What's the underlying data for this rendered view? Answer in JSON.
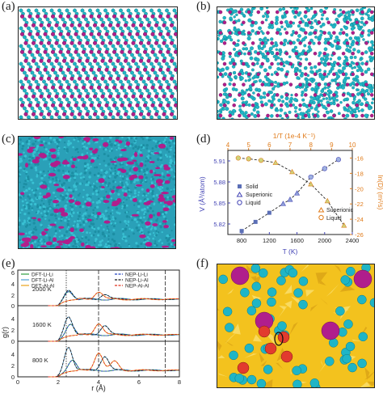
{
  "panel_labels": [
    "(a)",
    "(b)",
    "(c)",
    "(d)",
    "(e)",
    "(f)"
  ],
  "colors": {
    "li": "#1fb5c6",
    "al": "#b01e8c",
    "solid_marker": "#5b6fb6",
    "temp_axis": "#e07b1a",
    "volume_axis": "#4344b5",
    "dashed_fit": "#222222",
    "f_background": "#f3c21e",
    "f_red_atom": "#e23b2e"
  },
  "panel_d": {
    "top_axis_label": "1/T (1e-4 K⁻¹)",
    "top_ticks": [
      "4",
      "5",
      "6",
      "7",
      "8",
      "9",
      "10"
    ],
    "left_axis_label": "V (Å³/atom)",
    "left_ticks": [
      "5.91",
      "5.88",
      "5.85",
      "5.82"
    ],
    "right_axis_label": "ln(D) (m²/s)",
    "right_ticks": [
      "-16",
      "-18",
      "-20",
      "-22",
      "-24",
      "-26"
    ],
    "bottom_axis_label": "T (K)",
    "bottom_ticks": [
      "800",
      "1200",
      "1600",
      "2000",
      "2400"
    ],
    "legend_left": [
      "Solid",
      "Superionic",
      "Liquid"
    ],
    "legend_right": [
      "Superionic",
      "Liquid"
    ]
  },
  "panel_e": {
    "y_axis_label": "g(r)",
    "x_axis_label": "r (Å)",
    "x_ticks": [
      "0",
      "2",
      "4",
      "6",
      "8"
    ],
    "y_ticks": [
      "6",
      "4",
      "2",
      "0"
    ],
    "legend": [
      "DFT-Li-Li",
      "DFT-Li-Al",
      "DFT-Al-Al",
      "NEP-Li-Li",
      "NEP-Li-Al",
      "NEP-Al-Al"
    ],
    "legend_colors": [
      "#2e9e3e",
      "#4d9fd6",
      "#e8a21a",
      "#2040c0",
      "#1a1a1a",
      "#e0321e"
    ],
    "temperatures": [
      "2000 K",
      "1600 K",
      "800 K"
    ]
  },
  "chart_data": [
    {
      "type": "scatter",
      "panel": "d",
      "xlabel": "T (K)",
      "ylabel": "V (Å³/atom)",
      "xlim": [
        600,
        2400
      ],
      "ylim": [
        5.805,
        5.925
      ],
      "series": [
        {
          "name": "Solid",
          "x": [
            800,
            1000,
            1200
          ],
          "y": [
            5.81,
            5.823,
            5.836
          ]
        },
        {
          "name": "Superionic",
          "x": [
            1400,
            1500,
            1600
          ],
          "y": [
            5.849,
            5.855,
            5.864
          ]
        },
        {
          "name": "Liquid",
          "x": [
            1800,
            2000,
            2200
          ],
          "y": [
            5.887,
            5.899,
            5.912
          ]
        }
      ]
    },
    {
      "type": "scatter",
      "panel": "d",
      "xlabel": "1/T (1e-4 K⁻¹)",
      "ylabel": "ln(D) (m²/s)",
      "xlim": [
        4,
        10
      ],
      "ylim": [
        -26,
        -15
      ],
      "series": [
        {
          "name": "Liquid",
          "x": [
            4.5,
            5.0,
            5.6
          ],
          "y": [
            -16.0,
            -16.1,
            -16.3
          ]
        },
        {
          "name": "Superionic",
          "x": [
            6.3,
            7.1,
            8.0,
            8.8,
            9.6
          ],
          "y": [
            -16.6,
            -17.8,
            -19.4,
            -21.6,
            -24.8
          ]
        }
      ]
    },
    {
      "type": "line",
      "panel": "e",
      "xlabel": "r (Å)",
      "ylabel": "g(r)",
      "xlim": [
        0,
        8
      ],
      "ylim": [
        0,
        6
      ],
      "subpanels": [
        {
          "label": "2000 K",
          "peaks": {
            "Li-Li": [
              [
                2.5,
                2.2
              ]
            ],
            "Li-Al": [
              [
                2.5,
                2.4
              ],
              [
                4.3,
                1.6
              ]
            ],
            "Al-Al": [
              [
                4.0,
                2.0
              ]
            ]
          }
        },
        {
          "label": "1600 K",
          "peaks": {
            "Li-Li": [
              [
                2.6,
                2.6
              ]
            ],
            "Li-Al": [
              [
                2.5,
                3.8
              ],
              [
                4.3,
                2.3
              ]
            ],
            "Al-Al": [
              [
                4.0,
                2.6
              ]
            ]
          }
        },
        {
          "label": "800 K",
          "peaks": {
            "Li-Li": [
              [
                2.7,
                2.5
              ]
            ],
            "Li-Al": [
              [
                2.5,
                4.6
              ],
              [
                4.3,
                3.0
              ]
            ],
            "Al-Al": [
              [
                4.0,
                3.6
              ],
              [
                4.8,
                2.2
              ]
            ]
          }
        }
      ],
      "reference_lines": [
        2.4,
        4.0,
        7.3
      ]
    }
  ]
}
